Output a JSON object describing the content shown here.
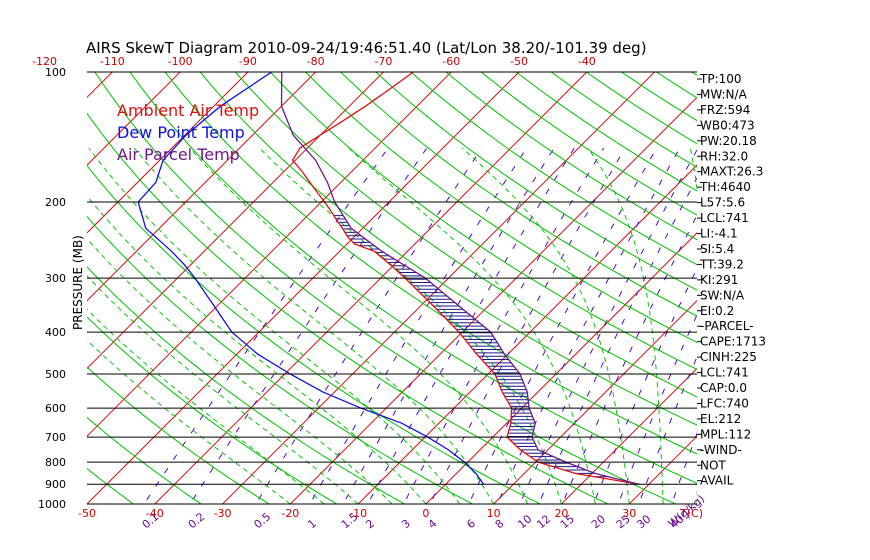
{
  "chart_data": {
    "type": "line",
    "title": "AIRS SkewT Diagram 2010-09-24/19:46:51.40 (Lat/Lon 38.20/-101.39 deg)",
    "ylabel": "PRESSURE (MB)",
    "xlabel": "T(C)",
    "mixing_ratio_label": "W(g/kg)",
    "y_scale": "log",
    "ylim": [
      1000,
      100
    ],
    "xlim_at_1000mb": [
      -50,
      40
    ],
    "pressure_ticks": [
      100,
      200,
      300,
      400,
      500,
      600,
      700,
      800,
      900,
      1000
    ],
    "bottom_temp_ticks": [
      -50,
      -40,
      -30,
      -20,
      -10,
      0,
      10,
      20,
      30
    ],
    "top_temp_ticks": [
      -120,
      -110,
      -100,
      -90,
      -80,
      -70,
      -60,
      -50,
      -40
    ],
    "mixing_ratio_ticks": [
      "0.1",
      "0.2",
      "0.5",
      "1",
      "1.5",
      "2",
      "3",
      "4",
      "6",
      "8",
      "10",
      "12",
      "15",
      "20",
      "25",
      "30",
      "40"
    ],
    "legend": [
      {
        "label": "Ambient Air Temp",
        "color": "#e01010"
      },
      {
        "label": "Dew Point Temp",
        "color": "#1010e0"
      },
      {
        "label": "Air Parcel Temp",
        "color": "#6a1a8a"
      }
    ],
    "series": [
      {
        "name": "Ambient Air Temp",
        "color": "#e01010",
        "points": [
          [
            100,
            -65.6
          ],
          [
            110,
            -66.6
          ],
          [
            120,
            -67.6
          ],
          [
            130,
            -68.8
          ],
          [
            140,
            -70
          ],
          [
            150,
            -71.1
          ],
          [
            160,
            -70.4
          ],
          [
            170,
            -67.3
          ],
          [
            180,
            -64.6
          ],
          [
            190,
            -62
          ],
          [
            200,
            -59.5
          ],
          [
            210,
            -57.2
          ],
          [
            220,
            -55.1
          ],
          [
            230,
            -53
          ],
          [
            240,
            -51.1
          ],
          [
            250,
            -48.9
          ],
          [
            260,
            -44.9
          ],
          [
            280,
            -40.4
          ],
          [
            300,
            -36.4
          ],
          [
            350,
            -27.8
          ],
          [
            400,
            -20.5
          ],
          [
            450,
            -14.6
          ],
          [
            500,
            -9
          ],
          [
            550,
            -5.3
          ],
          [
            600,
            -1.5
          ],
          [
            650,
            0.6
          ],
          [
            700,
            2.1
          ],
          [
            750,
            6
          ],
          [
            800,
            10.4
          ],
          [
            850,
            17.6
          ],
          [
            900,
            28.5
          ]
        ]
      },
      {
        "name": "Dew Point Temp",
        "color": "#1010e0",
        "points": [
          [
            100,
            -86.5
          ],
          [
            120,
            -89
          ],
          [
            140,
            -89.8
          ],
          [
            160,
            -89.5
          ],
          [
            180,
            -87.3
          ],
          [
            200,
            -87
          ],
          [
            230,
            -82
          ],
          [
            260,
            -74.8
          ],
          [
            280,
            -70.8
          ],
          [
            300,
            -67.4
          ],
          [
            350,
            -60.2
          ],
          [
            400,
            -54
          ],
          [
            450,
            -46.9
          ],
          [
            500,
            -39.2
          ],
          [
            550,
            -31.8
          ],
          [
            600,
            -23.7
          ],
          [
            650,
            -15.5
          ],
          [
            700,
            -9.6
          ],
          [
            750,
            -4.6
          ],
          [
            800,
            -0.5
          ],
          [
            850,
            2.9
          ],
          [
            900,
            5.6
          ]
        ]
      },
      {
        "name": "Air Parcel Temp",
        "color": "#6a1a8a",
        "points": [
          [
            100,
            -85
          ],
          [
            120,
            -80
          ],
          [
            140,
            -74
          ],
          [
            160,
            -67
          ],
          [
            180,
            -62
          ],
          [
            200,
            -58
          ],
          [
            230,
            -51.7
          ],
          [
            260,
            -43.8
          ],
          [
            300,
            -33.4
          ],
          [
            350,
            -24
          ],
          [
            400,
            -15.8
          ],
          [
            450,
            -10.5
          ],
          [
            500,
            -5.3
          ],
          [
            550,
            -1.6
          ],
          [
            600,
            1.1
          ],
          [
            650,
            4.2
          ],
          [
            700,
            5.8
          ],
          [
            750,
            8.6
          ],
          [
            800,
            14.5
          ],
          [
            850,
            20.5
          ],
          [
            900,
            28.5
          ]
        ]
      }
    ],
    "annotations": [
      "NOT",
      "AVAIL"
    ]
  },
  "indices": [
    "TP:100",
    "MW:N/A",
    "FRZ:594",
    "WB0:473",
    "PW:20.18",
    "RH:32.0",
    "MAXT:26.3",
    "TH:4640",
    "L57:5.6",
    "LCL:741",
    "LI:-4.1",
    "SI:5.4",
    "TT:39.2",
    "KI:291",
    "SW:N/A",
    "EI:0.2",
    "-PARCEL-",
    "CAPE:1713",
    "CINH:225",
    "LCL:741",
    "CAP:0.0",
    "LFC:740",
    "EL:212",
    "MPL:112",
    "-WIND-",
    "NOT",
    "AVAIL"
  ],
  "colors": {
    "isotherm": "#d01010",
    "dry_adiabat": "#00c000",
    "moist_adiabat": "#10c010",
    "mixing_ratio": "#4a0ac0",
    "isobar": "#000000",
    "hatch": "#1a1a8a",
    "tick_temp": "#cc0000",
    "tick_mix": "#6a0a90"
  }
}
